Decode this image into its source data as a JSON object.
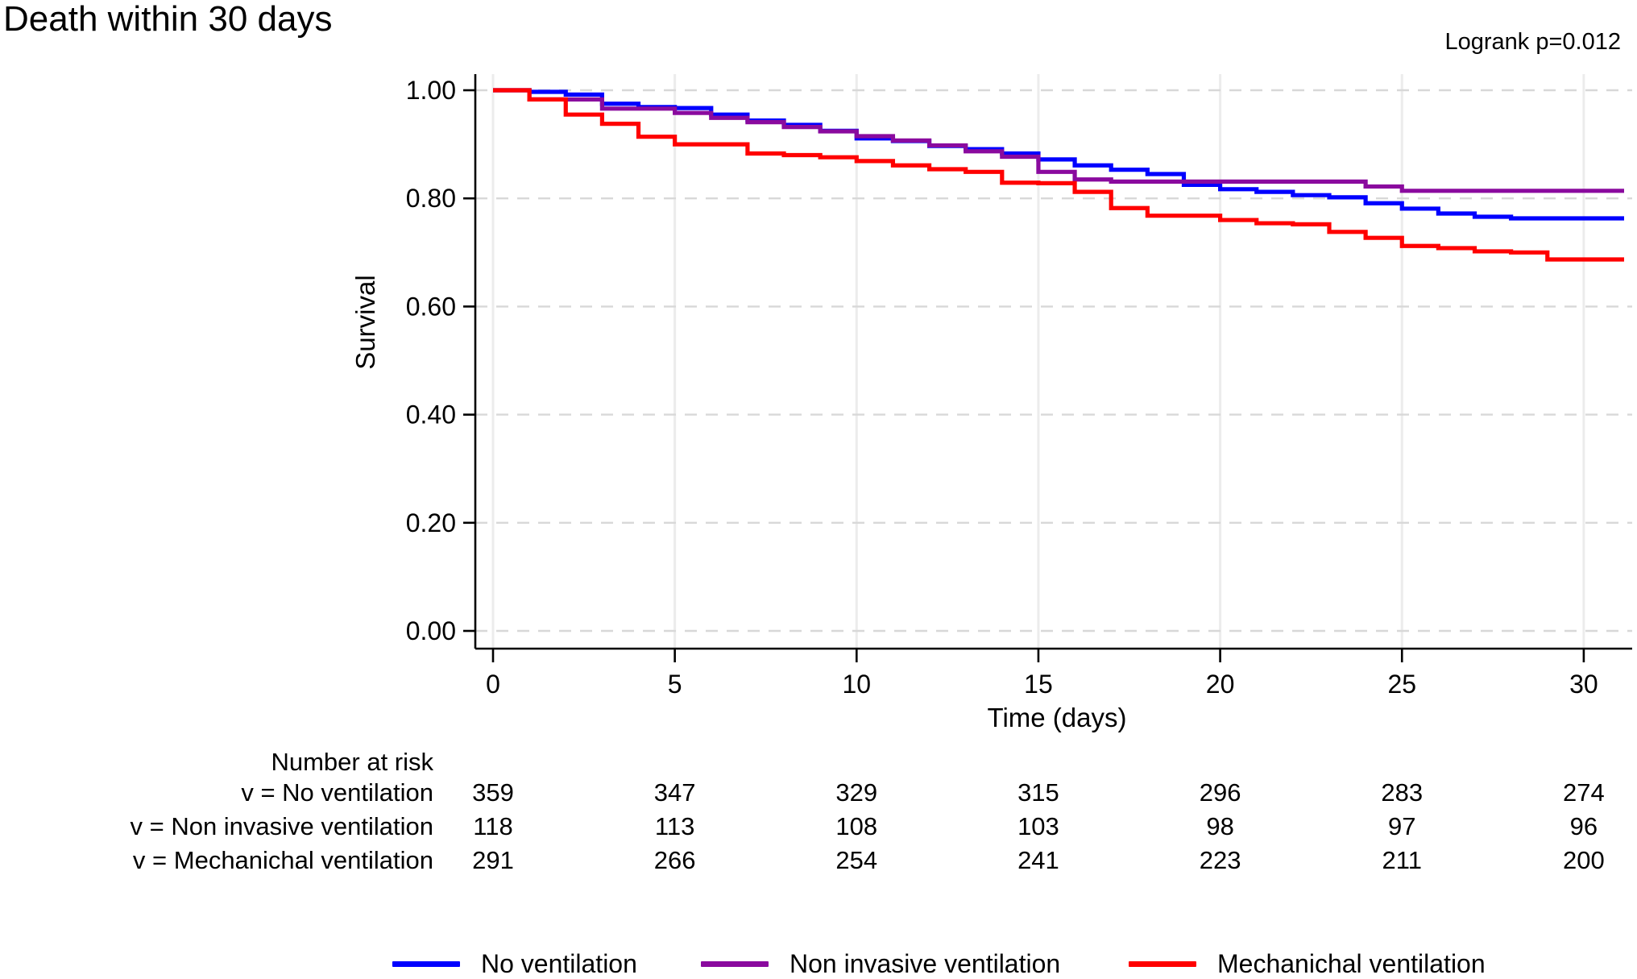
{
  "title": "Death within 30 days",
  "annotation": "Logrank p=0.012",
  "chart_data": {
    "type": "line",
    "subtype": "kaplan-meier-step",
    "title": "Death within 30 days",
    "xlabel": "Time (days)",
    "ylabel": "Survival",
    "xlim": [
      0,
      31.2
    ],
    "ylim": [
      0,
      1.0
    ],
    "xticks": [
      0,
      5,
      10,
      15,
      20,
      25,
      30
    ],
    "yticks": [
      0.0,
      0.2,
      0.4,
      0.6,
      0.8,
      1.0
    ],
    "ytick_labels": [
      "0.00",
      "0.20",
      "0.40",
      "0.60",
      "0.80",
      "1.00"
    ],
    "grid": {
      "horizontal": "dashed",
      "vertical": "solid"
    },
    "legend_position": "bottom",
    "annotation": "Logrank p=0.012",
    "x_days": [
      0,
      1,
      2,
      3,
      4,
      5,
      6,
      7,
      8,
      9,
      10,
      11,
      12,
      13,
      14,
      15,
      16,
      17,
      18,
      19,
      20,
      21,
      22,
      23,
      24,
      25,
      26,
      27,
      28,
      29,
      30,
      31
    ],
    "series": [
      {
        "name": "No ventilation",
        "color": "#0000ff",
        "y": [
          1.0,
          0.997,
          0.992,
          0.975,
          0.969,
          0.967,
          0.955,
          0.944,
          0.936,
          0.925,
          0.911,
          0.906,
          0.897,
          0.891,
          0.883,
          0.872,
          0.861,
          0.853,
          0.845,
          0.825,
          0.817,
          0.812,
          0.806,
          0.802,
          0.791,
          0.781,
          0.772,
          0.766,
          0.763,
          0.763,
          0.763,
          0.763
        ]
      },
      {
        "name": "Non invasive ventilation",
        "color": "#8a0a9e",
        "y": [
          1.0,
          0.983,
          0.983,
          0.966,
          0.966,
          0.958,
          0.949,
          0.941,
          0.932,
          0.924,
          0.915,
          0.907,
          0.898,
          0.887,
          0.877,
          0.849,
          0.835,
          0.831,
          0.831,
          0.831,
          0.831,
          0.831,
          0.831,
          0.831,
          0.822,
          0.814,
          0.814,
          0.814,
          0.814,
          0.814,
          0.814,
          0.814
        ]
      },
      {
        "name": "Mechanichal ventilation",
        "color": "#ff0000",
        "y": [
          1.0,
          0.983,
          0.955,
          0.938,
          0.914,
          0.9,
          0.9,
          0.883,
          0.88,
          0.876,
          0.869,
          0.861,
          0.854,
          0.849,
          0.829,
          0.828,
          0.812,
          0.782,
          0.768,
          0.768,
          0.76,
          0.754,
          0.752,
          0.738,
          0.727,
          0.712,
          0.708,
          0.702,
          0.7,
          0.687,
          0.687,
          0.687
        ]
      }
    ]
  },
  "risk_table": {
    "header": "Number at risk",
    "times": [
      0,
      5,
      10,
      15,
      20,
      25,
      30
    ],
    "rows": [
      {
        "label": "v = No ventilation",
        "values": [
          "359",
          "347",
          "329",
          "315",
          "296",
          "283",
          "274"
        ]
      },
      {
        "label": "v = Non invasive ventilation",
        "values": [
          "118",
          "113",
          "108",
          "103",
          "98",
          "97",
          "96"
        ]
      },
      {
        "label": "v = Mechanichal ventilation",
        "values": [
          "291",
          "266",
          "254",
          "241",
          "223",
          "211",
          "200"
        ]
      }
    ]
  },
  "legend": {
    "items": [
      {
        "label": "No ventilation",
        "color": "#0000ff"
      },
      {
        "label": "Non invasive ventilation",
        "color": "#8a0a9e"
      },
      {
        "label": "Mechanichal ventilation",
        "color": "#ff0000"
      }
    ]
  },
  "colors": {
    "axis": "#000000",
    "grid_horizontal": "#d8d8d8",
    "grid_vertical": "#ececec"
  }
}
